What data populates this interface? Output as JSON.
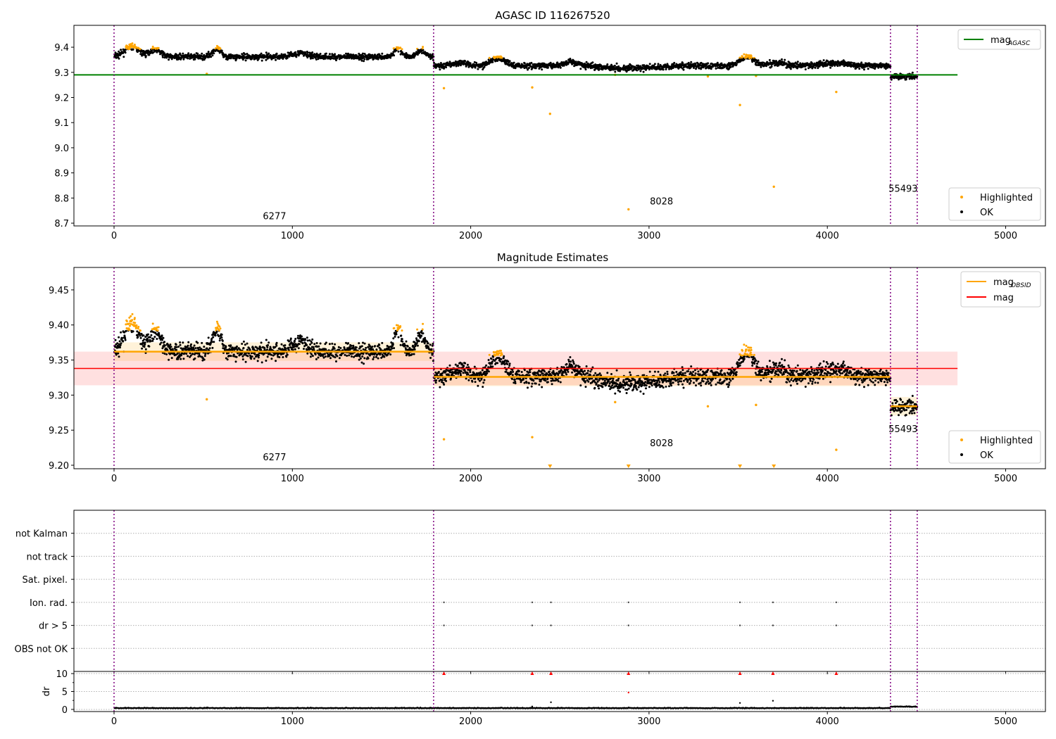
{
  "chart_data": [
    {
      "type": "scatter",
      "title": "AGASC ID 116267520",
      "xlim": [
        -225,
        5223
      ],
      "ylim": [
        8.689,
        9.487
      ],
      "xticks": [
        0,
        1000,
        2000,
        3000,
        4000,
        5000
      ],
      "yticks": [
        "8.7",
        "8.8",
        "8.9",
        "9.0",
        "9.1",
        "9.2",
        "9.3",
        "9.4"
      ],
      "lines": [
        {
          "name": "mag_AGASC",
          "label_main": "mag",
          "label_sub": "AGASC",
          "y": 9.29,
          "x": [
            -225,
            4730
          ],
          "color": "#008000"
        }
      ],
      "legend_upper": "top-right",
      "legend_lower": [
        {
          "label": "Highlighted",
          "color": "#ffa500"
        },
        {
          "label": "OK",
          "color": "#000000"
        }
      ],
      "obsid_labels": [
        {
          "text": "6277",
          "x": 900,
          "y": 8.715
        },
        {
          "text": "8028",
          "x": 3070,
          "y": 8.775
        },
        {
          "text": "55493",
          "x": 4425,
          "y": 8.825
        }
      ]
    },
    {
      "type": "scatter",
      "title": "Magnitude Estimates",
      "xlim": [
        -225,
        5223
      ],
      "ylim": [
        9.195,
        9.482
      ],
      "xticks": [
        0,
        1000,
        2000,
        3000,
        4000,
        5000
      ],
      "yticks": [
        "9.20",
        "9.25",
        "9.30",
        "9.35",
        "9.40",
        "9.45"
      ],
      "lines": [
        {
          "name": "mag_OBSID",
          "label_main": "mag",
          "label_sub": "OBSID",
          "color": "#ffa500"
        },
        {
          "name": "mag",
          "label_main": "mag",
          "label_sub": "",
          "y": 9.338,
          "band": [
            9.314,
            9.362
          ],
          "x": [
            -225,
            4730
          ],
          "color": "#ff0000"
        }
      ],
      "legend_lower": [
        {
          "label": "Highlighted",
          "color": "#ffa500"
        },
        {
          "label": "OK",
          "color": "#000000"
        }
      ],
      "obsid_labels": [
        {
          "text": "6277",
          "x": 900,
          "y": 9.207
        },
        {
          "text": "8028",
          "x": 3070,
          "y": 9.227
        },
        {
          "text": "55493",
          "x": 4425,
          "y": 9.247
        }
      ]
    },
    {
      "type": "scatter",
      "ylabels": [
        "OBS not OK",
        "dr > 5",
        "Ion. rad.",
        "Sat. pixel.",
        "not track",
        "not Kalman"
      ],
      "flag_x": [
        1850,
        2345,
        2450,
        2885,
        3510,
        3695,
        4050
      ],
      "flag_rows": [
        "Ion. rad.",
        "dr > 5"
      ]
    },
    {
      "type": "scatter",
      "ylabel": "dr",
      "ylim": [
        -0.6,
        10.6
      ],
      "yticks": [
        "0",
        "5",
        "10"
      ],
      "xticks": [
        0,
        1000,
        2000,
        3000,
        4000,
        5000
      ],
      "dr_typical": 0.3,
      "dr_outliers": [
        {
          "x": 2345,
          "y": 0.8
        },
        {
          "x": 2450,
          "y": 2.0
        },
        {
          "x": 3510,
          "y": 1.8
        },
        {
          "x": 3695,
          "y": 2.4
        },
        {
          "x": 2885,
          "y": 4.7
        }
      ],
      "dr_clipped_x": [
        1850,
        2345,
        2450,
        2885,
        3510,
        3695,
        4050
      ]
    }
  ],
  "observations": [
    {
      "obsid": "6277",
      "start": 0,
      "end": 1792,
      "mean": 9.362,
      "std": 0.011
    },
    {
      "obsid": "8028",
      "start": 1792,
      "end": 4354,
      "mean": 9.326,
      "std": 0.011
    },
    {
      "obsid": "55493",
      "start": 4354,
      "end": 4504,
      "mean": 9.284,
      "std": 0.011
    }
  ],
  "variations": [
    [
      100,
      40,
      0.04
    ],
    [
      230,
      30,
      0.03
    ],
    [
      575,
      25,
      0.03
    ],
    [
      1040,
      40,
      0.015
    ],
    [
      1590,
      20,
      0.035
    ],
    [
      1720,
      25,
      0.025
    ],
    [
      1950,
      40,
      0.012
    ],
    [
      2150,
      40,
      0.03
    ],
    [
      2560,
      40,
      0.015
    ],
    [
      2900,
      120,
      -0.01
    ],
    [
      3550,
      40,
      0.035
    ],
    [
      3720,
      40,
      0.012
    ],
    [
      4050,
      80,
      0.01
    ]
  ],
  "highlighted_outliers": [
    {
      "x": 520,
      "y": 9.294
    },
    {
      "x": 1850,
      "y": 9.237
    },
    {
      "x": 2345,
      "y": 9.24
    },
    {
      "x": 2445,
      "y": 9.135
    },
    {
      "x": 2885,
      "y": 8.755
    },
    {
      "x": 3510,
      "y": 9.17
    },
    {
      "x": 3700,
      "y": 8.845
    },
    {
      "x": 4050,
      "y": 9.222
    },
    {
      "x": 3330,
      "y": 9.284
    },
    {
      "x": 3600,
      "y": 9.286
    },
    {
      "x": 2810,
      "y": 9.29
    }
  ],
  "obs_boundaries": [
    0,
    1792,
    4354,
    4504
  ]
}
